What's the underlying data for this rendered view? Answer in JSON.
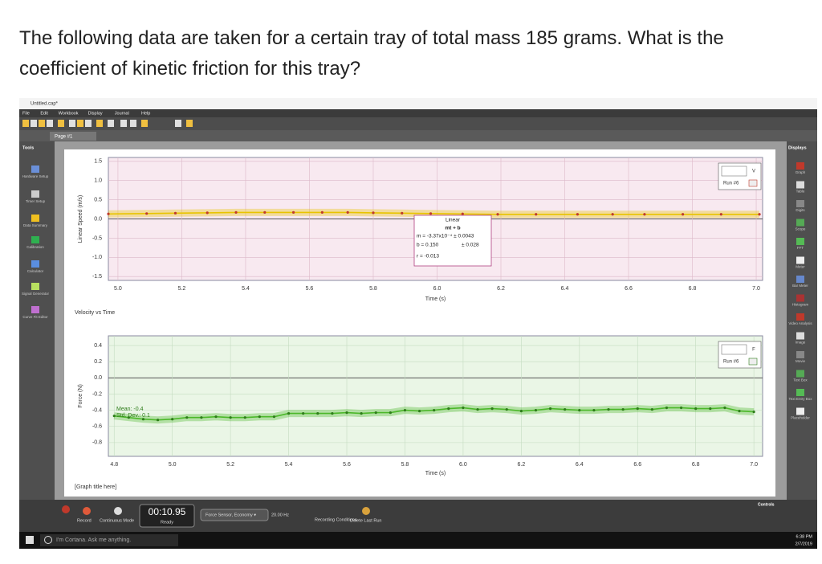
{
  "question": [
    "The following data are taken for a certain tray of total mass 185 grams. What is the",
    "coefficient of kinetic friction for this tray?"
  ],
  "window": {
    "title": "Untitled.cap*",
    "menu": [
      "File",
      "Edit",
      "Workbook",
      "Display",
      "Journal",
      "Help"
    ],
    "tab": "Page #1"
  },
  "tools": {
    "title": "Tools",
    "items": [
      "Hardware Setup",
      "Timer Setup",
      "Data Summary",
      "Calibration",
      "Calculator",
      "Signal Generator",
      "Curve Fit Editor"
    ]
  },
  "displays": {
    "title": "Displays",
    "items": [
      "Graph",
      "Table",
      "Digits",
      "Scope",
      "FFT",
      "Meter",
      "Bar Meter",
      "Histogram",
      "Video Analysis",
      "Image",
      "Movie",
      "Text Box",
      "Text Entry Box",
      "Placeholder"
    ]
  },
  "controls": {
    "record": "Record",
    "mode": "Continuous Mode",
    "time": "00:10.95",
    "status": "Ready",
    "sensor": "Force Sensor, Economy ▾",
    "rate": "20.00 Hz",
    "conditions": "Recording Conditions",
    "delete": "Delete Last Run",
    "panel": "Controls"
  },
  "taskbar": {
    "search": "I'm Cortana. Ask me anything.",
    "time": "6:38 PM",
    "date": "2/7/2019"
  },
  "chart_data": [
    {
      "type": "line",
      "title": "Velocity vs Time",
      "x_label": "Time (s)",
      "y_label": "Linear Speed (m/s)",
      "xlim": [
        4.97,
        7.02
      ],
      "xticks": [
        {
          "value": 5,
          "label": "5.0"
        },
        5.2,
        5.4,
        5.6,
        5.8,
        {
          "value": 6,
          "label": "6.0"
        },
        6.2,
        6.4,
        6.6,
        6.8,
        {
          "value": 7,
          "label": "7.0"
        }
      ],
      "ylim": [
        -1.6,
        1.6
      ],
      "yticks": [
        1.5,
        {
          "value": 1,
          "label": "1.0"
        },
        0.5,
        {
          "value": 0,
          "label": "0.0"
        },
        -0.5,
        {
          "value": -1,
          "label": "-1.0"
        },
        -1.5
      ],
      "grid": true,
      "background": "#f8e9f0",
      "grid_color": "#dcb8c8",
      "legend_symbol": "V",
      "x": [
        4.97,
        5.09,
        5.18,
        5.28,
        5.37,
        5.46,
        5.55,
        5.64,
        5.72,
        5.8,
        5.89,
        5.98,
        6.08,
        6.19,
        6.31,
        6.44,
        6.55,
        6.65,
        6.77,
        6.89,
        7.01
      ],
      "series": [
        {
          "name": "Run #6",
          "color": "#e8c400",
          "marker_color": "#c0392b",
          "values": [
            0.13,
            0.14,
            0.15,
            0.16,
            0.17,
            0.17,
            0.17,
            0.17,
            0.17,
            0.16,
            0.15,
            0.14,
            0.13,
            0.12,
            0.12,
            0.12,
            0.12,
            0.12,
            0.12,
            0.12,
            0.12
          ]
        }
      ],
      "annotations": [
        "Linear",
        "mt + b",
        "m = -3.37x10⁻⁴ ± 0.0043",
        "b = 0.150",
        "± 0.028",
        "r = -0.013"
      ]
    },
    {
      "type": "line",
      "title": "[Graph title here]",
      "x_label": "Time (s)",
      "y_label": "Force (N)",
      "xlim": [
        4.78,
        7.03
      ],
      "xticks": [
        4.8,
        {
          "value": 5,
          "label": "5.0"
        },
        5.2,
        5.4,
        5.6,
        5.8,
        {
          "value": 6,
          "label": "6.0"
        },
        6.2,
        6.4,
        6.6,
        6.8,
        {
          "value": 7,
          "label": "7.0"
        }
      ],
      "ylim": [
        -0.97,
        0.52
      ],
      "yticks": [
        0.4,
        0.2,
        {
          "value": 0,
          "label": "0.0"
        },
        -0.2,
        -0.4,
        -0.6,
        -0.8
      ],
      "grid": true,
      "background": "#eaf6e6",
      "grid_color": "#c4dcc0",
      "legend_symbol": "F",
      "x": [
        4.8,
        4.85,
        4.9,
        4.95,
        5.0,
        5.05,
        5.1,
        5.15,
        5.2,
        5.25,
        5.3,
        5.35,
        5.4,
        5.45,
        5.5,
        5.55,
        5.6,
        5.65,
        5.7,
        5.75,
        5.8,
        5.85,
        5.9,
        5.95,
        6.0,
        6.05,
        6.1,
        6.15,
        6.2,
        6.25,
        6.3,
        6.35,
        6.4,
        6.45,
        6.5,
        6.55,
        6.6,
        6.65,
        6.7,
        6.75,
        6.8,
        6.85,
        6.9,
        6.95,
        7.0
      ],
      "series": [
        {
          "name": "Run #6",
          "color": "#4cb82a",
          "marker_color": "#2e7d1a",
          "values": [
            -0.47,
            -0.49,
            -0.51,
            -0.52,
            -0.51,
            -0.49,
            -0.49,
            -0.48,
            -0.49,
            -0.49,
            -0.48,
            -0.48,
            -0.44,
            -0.44,
            -0.44,
            -0.44,
            -0.43,
            -0.44,
            -0.43,
            -0.43,
            -0.4,
            -0.41,
            -0.4,
            -0.38,
            -0.37,
            -0.39,
            -0.38,
            -0.39,
            -0.41,
            -0.4,
            -0.38,
            -0.39,
            -0.4,
            -0.4,
            -0.39,
            -0.39,
            -0.38,
            -0.39,
            -0.37,
            -0.37,
            -0.38,
            -0.38,
            -0.37,
            -0.41,
            -0.42
          ]
        }
      ],
      "annotations": [
        "Mean: -0.4",
        "Std. Dev.: 0.1"
      ]
    }
  ]
}
